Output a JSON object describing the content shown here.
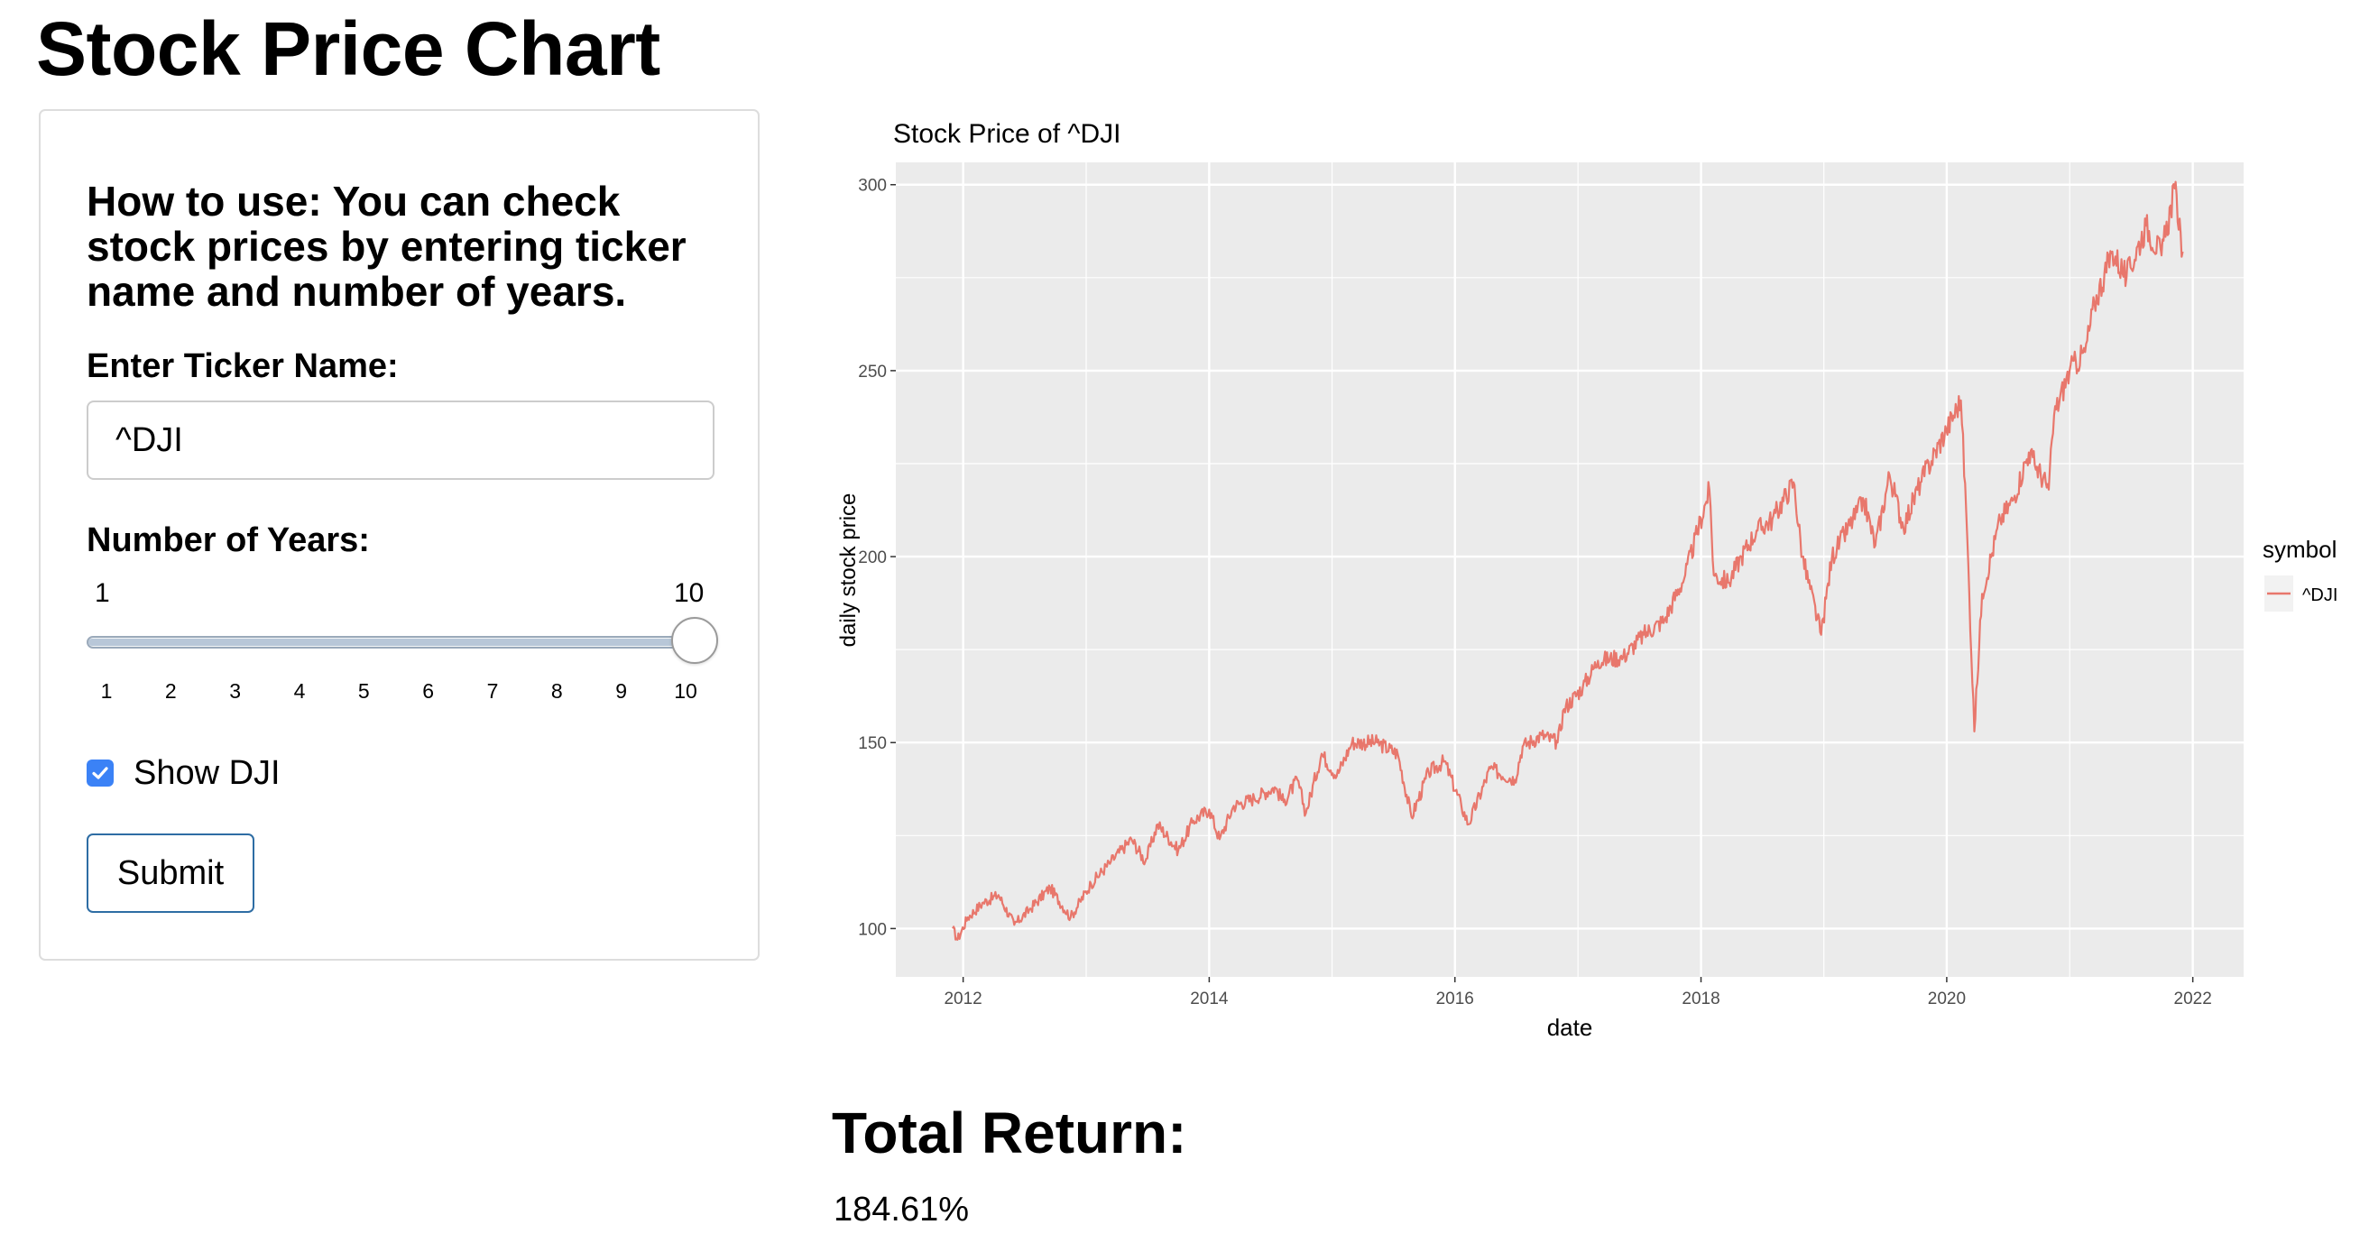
{
  "page": {
    "title": "Stock Price Chart"
  },
  "sidebar": {
    "help_text": "How to use: You can check stock prices by entering ticker name and number of years.",
    "ticker_label": "Enter Ticker Name:",
    "ticker_value": "^DJI",
    "years_label": "Number of Years:",
    "slider": {
      "min": 1,
      "max": 10,
      "value": 10,
      "min_label": "1",
      "max_label": "10",
      "ticks": [
        "1",
        "2",
        "3",
        "4",
        "5",
        "6",
        "7",
        "8",
        "9",
        "10"
      ]
    },
    "checkbox_label": "Show DJI",
    "checkbox_checked": true,
    "submit_label": "Submit"
  },
  "chart_data": {
    "type": "line",
    "title": "Stock Price of ^DJI",
    "xlabel": "date",
    "ylabel": "daily stock price",
    "xlim": [
      "2011-06-15",
      "2022-06-01"
    ],
    "ylim": [
      87,
      306
    ],
    "x_ticks": [
      "2012",
      "2014",
      "2016",
      "2018",
      "2020",
      "2022"
    ],
    "y_ticks": [
      100,
      150,
      200,
      250,
      300
    ],
    "grid": true,
    "legend": {
      "title": "symbol",
      "position": "right"
    },
    "colors": {
      "line": "#E8776C",
      "panel": "#EBEBEB",
      "grid": "#FFFFFF",
      "text": "#4D4D4D"
    },
    "series": [
      {
        "name": "^DJI",
        "points": [
          [
            "2011-12-01",
            100
          ],
          [
            "2011-12-15",
            97
          ],
          [
            "2012-01-15",
            103
          ],
          [
            "2012-03-01",
            107
          ],
          [
            "2012-04-15",
            109
          ],
          [
            "2012-06-01",
            101
          ],
          [
            "2012-07-15",
            105
          ],
          [
            "2012-09-15",
            111
          ],
          [
            "2012-11-15",
            103
          ],
          [
            "2013-01-15",
            112
          ],
          [
            "2013-03-15",
            118
          ],
          [
            "2013-05-15",
            124
          ],
          [
            "2013-06-25",
            118
          ],
          [
            "2013-08-01",
            128
          ],
          [
            "2013-10-01",
            121
          ],
          [
            "2013-11-15",
            129
          ],
          [
            "2014-01-01",
            132
          ],
          [
            "2014-02-01",
            124
          ],
          [
            "2014-03-15",
            133
          ],
          [
            "2014-05-15",
            135
          ],
          [
            "2014-07-15",
            138
          ],
          [
            "2014-08-10",
            134
          ],
          [
            "2014-09-20",
            140
          ],
          [
            "2014-10-15",
            131
          ],
          [
            "2014-12-01",
            147
          ],
          [
            "2015-01-15",
            141
          ],
          [
            "2015-03-01",
            150
          ],
          [
            "2015-05-15",
            150
          ],
          [
            "2015-07-15",
            147
          ],
          [
            "2015-08-25",
            130
          ],
          [
            "2015-10-15",
            142
          ],
          [
            "2015-12-01",
            145
          ],
          [
            "2016-01-20",
            133
          ],
          [
            "2016-02-10",
            128
          ],
          [
            "2016-04-15",
            143
          ],
          [
            "2016-06-27",
            140
          ],
          [
            "2016-07-20",
            149
          ],
          [
            "2016-09-15",
            152
          ],
          [
            "2016-11-01",
            150
          ],
          [
            "2016-11-20",
            159
          ],
          [
            "2017-01-15",
            165
          ],
          [
            "2017-03-01",
            172
          ],
          [
            "2017-05-15",
            173
          ],
          [
            "2017-07-15",
            179
          ],
          [
            "2017-09-15",
            183
          ],
          [
            "2017-11-15",
            195
          ],
          [
            "2018-01-26",
            218
          ],
          [
            "2018-02-08",
            195
          ],
          [
            "2018-03-23",
            193
          ],
          [
            "2018-05-01",
            200
          ],
          [
            "2018-06-15",
            207
          ],
          [
            "2018-08-01",
            210
          ],
          [
            "2018-10-03",
            220
          ],
          [
            "2018-10-29",
            200
          ],
          [
            "2018-12-24",
            179
          ],
          [
            "2019-01-25",
            200
          ],
          [
            "2019-04-30",
            215
          ],
          [
            "2019-06-03",
            203
          ],
          [
            "2019-07-15",
            222
          ],
          [
            "2019-08-25",
            208
          ],
          [
            "2019-10-15",
            220
          ],
          [
            "2019-12-31",
            234
          ],
          [
            "2020-02-12",
            242
          ],
          [
            "2020-02-28",
            212
          ],
          [
            "2020-03-23",
            153
          ],
          [
            "2020-04-15",
            190
          ],
          [
            "2020-06-08",
            210
          ],
          [
            "2020-07-15",
            215
          ],
          [
            "2020-09-01",
            228
          ],
          [
            "2020-10-30",
            218
          ],
          [
            "2020-11-15",
            238
          ],
          [
            "2020-12-31",
            250
          ],
          [
            "2021-02-15",
            255
          ],
          [
            "2021-03-15",
            268
          ],
          [
            "2021-05-07",
            282
          ],
          [
            "2021-06-18",
            275
          ],
          [
            "2021-08-15",
            289
          ],
          [
            "2021-09-30",
            281
          ],
          [
            "2021-11-08",
            299
          ],
          [
            "2021-11-26",
            287
          ],
          [
            "2021-12-02",
            282
          ]
        ]
      }
    ]
  },
  "results": {
    "title": "Total Return:",
    "value": "184.61%"
  }
}
